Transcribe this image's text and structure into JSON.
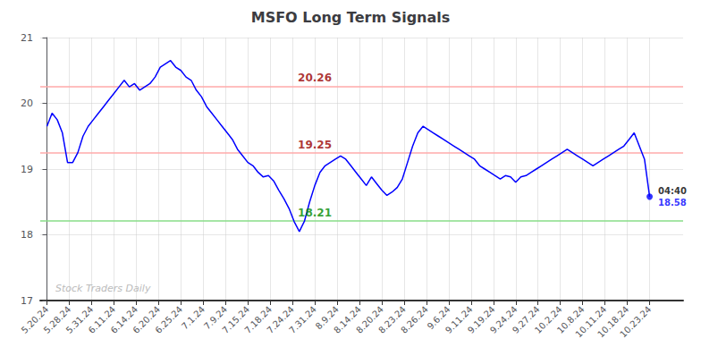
{
  "chart_data": {
    "type": "line",
    "title": "MSFO Long Term Signals",
    "color": "blue",
    "xlim": [
      -0.3,
      28.5
    ],
    "xticks": [
      {
        "value": 0,
        "label": "5.20.24"
      },
      {
        "value": 1,
        "label": "5.28.24"
      },
      {
        "value": 2,
        "label": "5.31.24"
      },
      {
        "value": 3,
        "label": "6.11.24"
      },
      {
        "value": 4,
        "label": "6.14.24"
      },
      {
        "value": 5,
        "label": "6.20.24"
      },
      {
        "value": 6,
        "label": "6.25.24"
      },
      {
        "value": 7,
        "label": "7.1.24"
      },
      {
        "value": 8,
        "label": "7.9.24"
      },
      {
        "value": 9,
        "label": "7.15.24"
      },
      {
        "value": 10,
        "label": "7.18.24"
      },
      {
        "value": 11,
        "label": "7.24.24"
      },
      {
        "value": 12,
        "label": "7.31.24"
      },
      {
        "value": 13,
        "label": "8.9.24"
      },
      {
        "value": 14,
        "label": "8.14.24"
      },
      {
        "value": 15,
        "label": "8.20.24"
      },
      {
        "value": 16,
        "label": "8.23.24"
      },
      {
        "value": 17,
        "label": "8.26.24"
      },
      {
        "value": 18,
        "label": "9.6.24"
      },
      {
        "value": 19,
        "label": "9.11.24"
      },
      {
        "value": 20,
        "label": "9.19.24"
      },
      {
        "value": 21,
        "label": "9.24.24"
      },
      {
        "value": 22,
        "label": "9.27.24"
      },
      {
        "value": 23,
        "label": "10.2.24"
      },
      {
        "value": 24,
        "label": "10.8.24"
      },
      {
        "value": 25,
        "label": "10.11.24"
      },
      {
        "value": 26,
        "label": "10.18.24"
      },
      {
        "value": 27,
        "label": "10.23.24"
      }
    ],
    "ylim": [
      17,
      21
    ],
    "yticks": [
      17,
      18,
      19,
      20,
      21
    ],
    "grid": true,
    "values": [
      19.65,
      19.85,
      19.75,
      19.55,
      19.1,
      19.1,
      19.25,
      19.5,
      19.65,
      19.75,
      19.85,
      19.95,
      20.05,
      20.15,
      20.25,
      20.35,
      20.25,
      20.3,
      20.2,
      20.25,
      20.3,
      20.4,
      20.55,
      20.6,
      20.65,
      20.55,
      20.5,
      20.4,
      20.35,
      20.2,
      20.1,
      19.95,
      19.85,
      19.75,
      19.65,
      19.55,
      19.45,
      19.3,
      19.2,
      19.1,
      19.05,
      18.95,
      18.88,
      18.9,
      18.82,
      18.68,
      18.55,
      18.4,
      18.2,
      18.05,
      18.21,
      18.5,
      18.75,
      18.95,
      19.05,
      19.1,
      19.15,
      19.2,
      19.15,
      19.05,
      18.95,
      18.85,
      18.75,
      18.88,
      18.78,
      18.68,
      18.6,
      18.65,
      18.72,
      18.85,
      19.1,
      19.35,
      19.55,
      19.65,
      19.6,
      19.55,
      19.5,
      19.45,
      19.4,
      19.35,
      19.3,
      19.25,
      19.2,
      19.15,
      19.05,
      19.0,
      18.95,
      18.9,
      18.85,
      18.9,
      18.88,
      18.8,
      18.88,
      18.9,
      18.95,
      19.0,
      19.05,
      19.1,
      19.15,
      19.2,
      19.25,
      19.3,
      19.25,
      19.2,
      19.15,
      19.1,
      19.05,
      19.1,
      19.15,
      19.2,
      19.25,
      19.3,
      19.35,
      19.45,
      19.55,
      19.35,
      19.15,
      18.58
    ],
    "reference_lines": [
      {
        "value": 20.26,
        "color": "#ffaaaa",
        "label": "20.26",
        "label_color": "#990000"
      },
      {
        "value": 19.25,
        "color": "#ffaaaa",
        "label": "19.25",
        "label_color": "#990000"
      },
      {
        "value": 18.21,
        "color": "#88dd88",
        "label": "18.21",
        "label_color": "#008800"
      }
    ],
    "last_point_labels": [
      {
        "text": "04:40",
        "color": "black"
      },
      {
        "text": "18.58",
        "color": "blue"
      }
    ],
    "watermark": "Stock Traders Daily"
  }
}
